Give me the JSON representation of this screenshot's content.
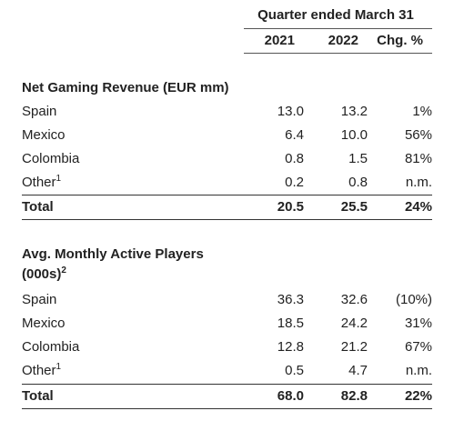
{
  "header": {
    "period": "Quarter ended March 31",
    "columns": [
      "2021",
      "2022",
      "Chg. %"
    ]
  },
  "sections": [
    {
      "title_lines": [
        "Net Gaming Revenue (EUR mm)"
      ],
      "rows": [
        {
          "label": "Spain",
          "sup": "",
          "v2021": "13.0",
          "v2022": "13.2",
          "chg": "1%"
        },
        {
          "label": "Mexico",
          "sup": "",
          "v2021": "6.4",
          "v2022": "10.0",
          "chg": "56%"
        },
        {
          "label": "Colombia",
          "sup": "",
          "v2021": "0.8",
          "v2022": "1.5",
          "chg": "81%"
        },
        {
          "label": "Other",
          "sup": "1",
          "v2021": "0.2",
          "v2022": "0.8",
          "chg": "n.m."
        }
      ],
      "total": {
        "label": "Total",
        "v2021": "20.5",
        "v2022": "25.5",
        "chg": "24%"
      }
    },
    {
      "title_lines": [
        "Avg. Monthly Active Players",
        "(000s)"
      ],
      "title_sup": "2",
      "rows": [
        {
          "label": "Spain",
          "sup": "",
          "v2021": "36.3",
          "v2022": "32.6",
          "chg": "(10%)"
        },
        {
          "label": "Mexico",
          "sup": "",
          "v2021": "18.5",
          "v2022": "24.2",
          "chg": "31%"
        },
        {
          "label": "Colombia",
          "sup": "",
          "v2021": "12.8",
          "v2022": "21.2",
          "chg": "67%"
        },
        {
          "label": "Other",
          "sup": "1",
          "v2021": "0.5",
          "v2022": "4.7",
          "chg": "n.m."
        }
      ],
      "total": {
        "label": "Total",
        "v2021": "68.0",
        "v2022": "82.8",
        "chg": "22%"
      }
    }
  ]
}
